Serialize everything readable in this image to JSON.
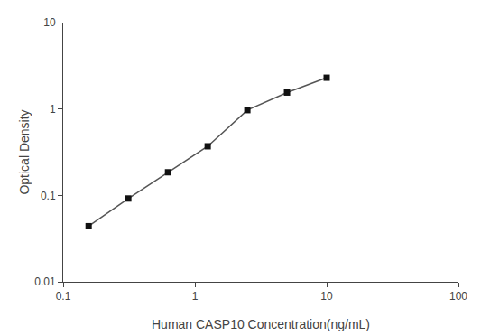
{
  "chart_data": {
    "type": "line",
    "x": [
      0.156,
      0.312,
      0.625,
      1.25,
      2.5,
      5.0,
      10.0
    ],
    "values": [
      0.044,
      0.092,
      0.185,
      0.37,
      0.97,
      1.55,
      2.3
    ],
    "xlabel": "Human CASP10 Concentration(ng/mL)",
    "ylabel": "Optical Density",
    "xlim": [
      0.1,
      100
    ],
    "ylim": [
      0.01,
      10
    ],
    "xticks": [
      0.1,
      1,
      10,
      100
    ],
    "yticks": [
      0.01,
      0.1,
      1,
      10
    ],
    "log": true,
    "grid": false,
    "color": "#555555",
    "marker": "square",
    "colors": [
      "#111111",
      "#111111",
      "#111111",
      "#111111",
      "#111111",
      "#111111",
      "#111111"
    ]
  }
}
